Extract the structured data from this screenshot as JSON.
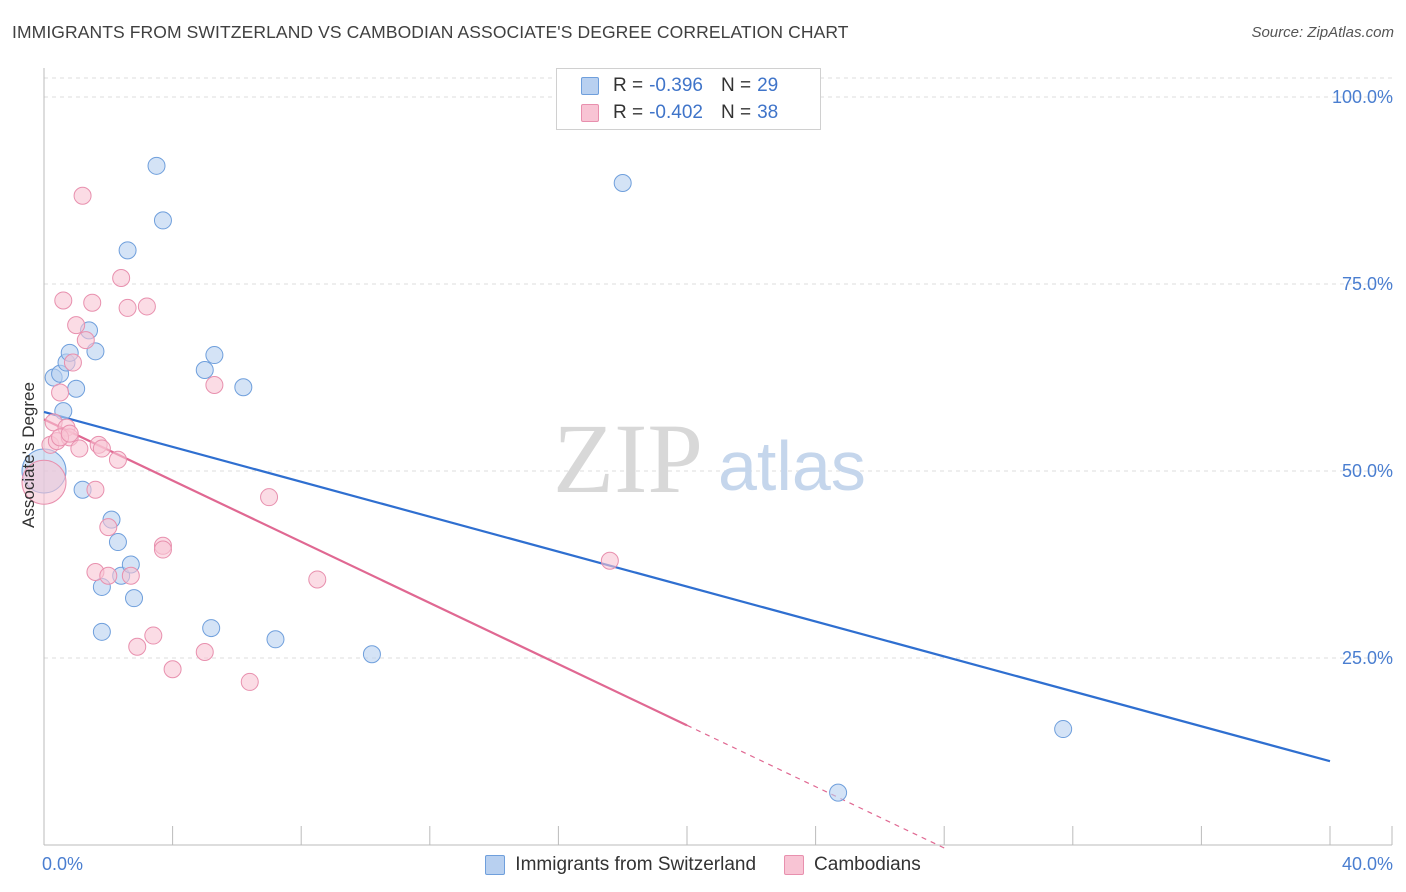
{
  "header": {
    "title": "IMMIGRANTS FROM SWITZERLAND VS CAMBODIAN ASSOCIATE'S DEGREE CORRELATION CHART",
    "source": "Source: ZipAtlas.com"
  },
  "watermark": {
    "zip": "ZIP",
    "atlas": "atlas"
  },
  "colors": {
    "blue_fill": "#b8d0f0",
    "blue_stroke": "#6f9fdc",
    "blue_line": "#2f6fd0",
    "pink_fill": "#f8c4d4",
    "pink_stroke": "#e890ae",
    "pink_line": "#e06892",
    "tick_label": "#4a7ed0",
    "grid": "#dcdcdc"
  },
  "legend": {
    "r_label": "R =",
    "n_label": "N =",
    "entries": [
      {
        "name": "Immigrants from Switzerland",
        "r": "-0.396",
        "n": "29",
        "color": "blue"
      },
      {
        "name": "Cambodians",
        "r": "-0.402",
        "n": "38",
        "color": "pink"
      }
    ]
  },
  "chart_data": {
    "type": "scatter",
    "title": "IMMIGRANTS FROM SWITZERLAND VS CAMBODIAN ASSOCIATE'S DEGREE CORRELATION CHART",
    "xlabel": "",
    "ylabel": "Associate's Degree",
    "xlim": [
      0,
      40
    ],
    "ylim": [
      0,
      100
    ],
    "x_tick_labels": [
      {
        "value": 0,
        "label": "0.0%"
      },
      {
        "value": 40,
        "label": "40.0%"
      }
    ],
    "y_tick_labels": [
      {
        "value": 100,
        "label": "100.0%"
      },
      {
        "value": 75,
        "label": "75.0%"
      },
      {
        "value": 50,
        "label": "50.0%"
      },
      {
        "value": 25,
        "label": "25.0%"
      }
    ],
    "series": [
      {
        "name": "Immigrants from Switzerland",
        "color": "blue",
        "points": [
          [
            0.0,
            50.0
          ],
          [
            0.3,
            62.5
          ],
          [
            0.5,
            63.0
          ],
          [
            0.6,
            58.0
          ],
          [
            0.7,
            64.5
          ],
          [
            0.8,
            65.8
          ],
          [
            1.0,
            61.0
          ],
          [
            1.2,
            47.5
          ],
          [
            1.4,
            68.8
          ],
          [
            1.6,
            66.0
          ],
          [
            1.8,
            28.5
          ],
          [
            1.8,
            34.5
          ],
          [
            2.1,
            43.5
          ],
          [
            2.3,
            40.5
          ],
          [
            2.4,
            36.0
          ],
          [
            2.6,
            79.5
          ],
          [
            2.7,
            37.5
          ],
          [
            2.8,
            33.0
          ],
          [
            3.5,
            90.8
          ],
          [
            3.7,
            83.5
          ],
          [
            5.0,
            63.5
          ],
          [
            5.2,
            29.0
          ],
          [
            5.3,
            65.5
          ],
          [
            6.2,
            61.2
          ],
          [
            7.2,
            27.5
          ],
          [
            10.2,
            25.5
          ],
          [
            18.0,
            88.5
          ],
          [
            24.7,
            7.0
          ],
          [
            31.7,
            15.5
          ]
        ],
        "trend_line": {
          "x": [
            0,
            40
          ],
          "y": [
            57.9,
            11.2
          ]
        }
      },
      {
        "name": "Cambodians",
        "color": "pink",
        "points": [
          [
            0.0,
            48.5
          ],
          [
            0.2,
            53.5
          ],
          [
            0.3,
            56.5
          ],
          [
            0.4,
            54.0
          ],
          [
            0.5,
            60.5
          ],
          [
            0.6,
            72.8
          ],
          [
            0.7,
            55.8
          ],
          [
            0.8,
            54.5
          ],
          [
            0.9,
            64.5
          ],
          [
            1.0,
            69.5
          ],
          [
            1.1,
            53.0
          ],
          [
            1.2,
            86.8
          ],
          [
            1.3,
            67.5
          ],
          [
            1.5,
            72.5
          ],
          [
            1.6,
            36.5
          ],
          [
            1.6,
            47.5
          ],
          [
            1.7,
            53.5
          ],
          [
            1.8,
            53.0
          ],
          [
            2.0,
            42.5
          ],
          [
            2.0,
            36.0
          ],
          [
            2.3,
            51.5
          ],
          [
            2.4,
            75.8
          ],
          [
            2.6,
            71.8
          ],
          [
            2.7,
            36.0
          ],
          [
            2.9,
            26.5
          ],
          [
            3.2,
            72.0
          ],
          [
            3.4,
            28.0
          ],
          [
            3.7,
            40.0
          ],
          [
            3.7,
            39.5
          ],
          [
            4.0,
            23.5
          ],
          [
            5.0,
            25.8
          ],
          [
            5.3,
            61.5
          ],
          [
            6.4,
            21.8
          ],
          [
            7.0,
            46.5
          ],
          [
            8.5,
            35.5
          ],
          [
            17.6,
            38.0
          ],
          [
            0.5,
            54.5
          ],
          [
            0.8,
            55.0
          ]
        ],
        "trend_line": {
          "x": [
            0,
            20
          ],
          "y": [
            56.9,
            16.0
          ]
        },
        "trend_extension": {
          "x": [
            20,
            28
          ],
          "y": [
            16.0,
            -0.4
          ]
        }
      }
    ]
  }
}
